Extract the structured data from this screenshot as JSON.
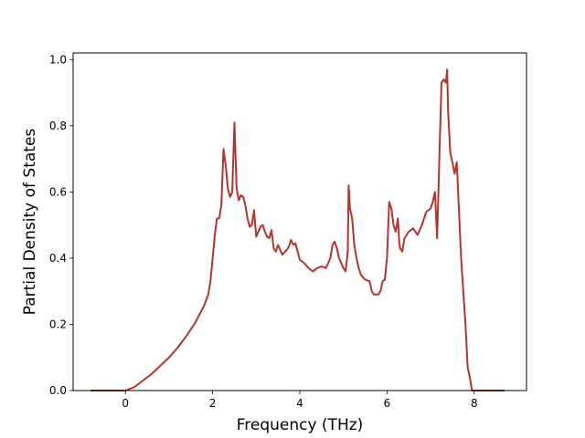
{
  "chart_data": {
    "type": "line",
    "title": "",
    "xlabel": "Frequency (THz)",
    "ylabel": "Partial Density of States",
    "xlim": [
      -1.2,
      9.2
    ],
    "ylim": [
      0.0,
      1.02
    ],
    "xticks": [
      0,
      2,
      4,
      6,
      8
    ],
    "xtick_labels": [
      "0",
      "2",
      "4",
      "6",
      "8"
    ],
    "yticks": [
      0.0,
      0.2,
      0.4,
      0.6,
      0.8,
      1.0
    ],
    "ytick_labels": [
      "0.0",
      "0.2",
      "0.4",
      "0.6",
      "0.8",
      "1.0"
    ],
    "grid": false,
    "legend": "none",
    "series": [
      {
        "color": "#b5342a",
        "x": [
          -0.8,
          -0.4,
          0.0,
          0.2,
          0.4,
          0.6,
          0.8,
          1.0,
          1.2,
          1.4,
          1.6,
          1.8,
          1.9,
          1.95,
          2.0,
          2.05,
          2.1,
          2.15,
          2.2,
          2.25,
          2.3,
          2.35,
          2.4,
          2.45,
          2.5,
          2.55,
          2.6,
          2.65,
          2.7,
          2.75,
          2.8,
          2.85,
          2.9,
          2.95,
          3.0,
          3.1,
          3.15,
          3.2,
          3.25,
          3.3,
          3.35,
          3.4,
          3.45,
          3.5,
          3.55,
          3.6,
          3.7,
          3.75,
          3.8,
          3.85,
          3.9,
          4.0,
          4.1,
          4.2,
          4.3,
          4.4,
          4.5,
          4.6,
          4.7,
          4.75,
          4.8,
          4.85,
          4.9,
          5.0,
          5.05,
          5.1,
          5.12,
          5.15,
          5.2,
          5.25,
          5.3,
          5.35,
          5.4,
          5.5,
          5.6,
          5.65,
          5.7,
          5.8,
          5.85,
          5.9,
          5.95,
          6.0,
          6.05,
          6.1,
          6.15,
          6.2,
          6.25,
          6.28,
          6.3,
          6.35,
          6.4,
          6.45,
          6.5,
          6.6,
          6.7,
          6.8,
          6.9,
          7.0,
          7.05,
          7.1,
          7.15,
          7.2,
          7.25,
          7.3,
          7.35,
          7.38,
          7.4,
          7.45,
          7.5,
          7.55,
          7.6,
          7.7,
          7.8,
          7.85,
          7.9,
          7.95,
          8.0,
          8.3,
          8.7
        ],
        "y": [
          0.0,
          0.0,
          0.0,
          0.01,
          0.03,
          0.05,
          0.075,
          0.1,
          0.13,
          0.165,
          0.205,
          0.255,
          0.29,
          0.33,
          0.4,
          0.47,
          0.52,
          0.52,
          0.56,
          0.73,
          0.68,
          0.61,
          0.585,
          0.6,
          0.81,
          0.61,
          0.575,
          0.59,
          0.585,
          0.56,
          0.52,
          0.495,
          0.5,
          0.545,
          0.465,
          0.495,
          0.5,
          0.48,
          0.465,
          0.46,
          0.485,
          0.43,
          0.42,
          0.44,
          0.425,
          0.41,
          0.425,
          0.435,
          0.455,
          0.44,
          0.445,
          0.395,
          0.385,
          0.37,
          0.36,
          0.37,
          0.375,
          0.37,
          0.4,
          0.44,
          0.45,
          0.43,
          0.4,
          0.37,
          0.36,
          0.42,
          0.62,
          0.55,
          0.52,
          0.44,
          0.4,
          0.37,
          0.35,
          0.335,
          0.33,
          0.3,
          0.29,
          0.29,
          0.3,
          0.33,
          0.335,
          0.4,
          0.57,
          0.55,
          0.5,
          0.48,
          0.52,
          0.45,
          0.43,
          0.42,
          0.46,
          0.47,
          0.48,
          0.49,
          0.47,
          0.5,
          0.54,
          0.55,
          0.57,
          0.6,
          0.46,
          0.7,
          0.93,
          0.94,
          0.93,
          0.97,
          0.85,
          0.72,
          0.69,
          0.655,
          0.69,
          0.4,
          0.2,
          0.07,
          0.04,
          0.0,
          0.0,
          0.0,
          0.0
        ]
      }
    ]
  }
}
